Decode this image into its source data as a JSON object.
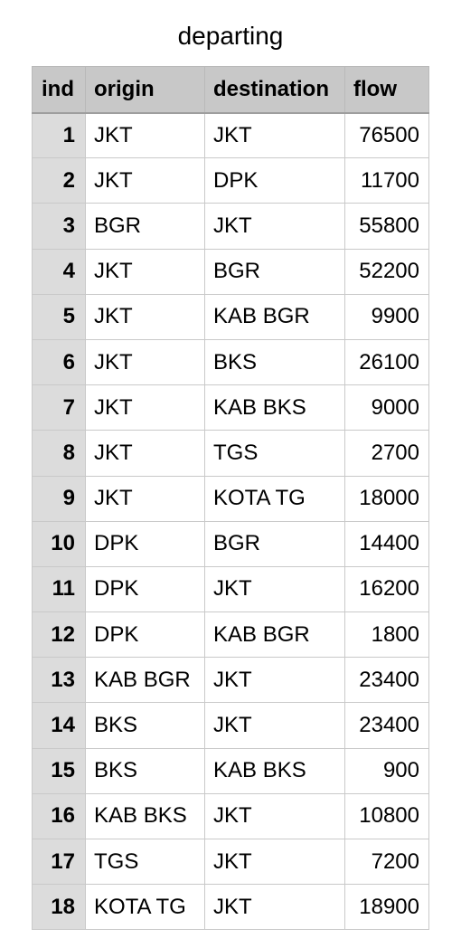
{
  "title": "departing",
  "table": {
    "columns": [
      "ind",
      "origin",
      "destination",
      "flow"
    ],
    "rows": [
      {
        "ind": "1",
        "origin": "JKT",
        "destination": "JKT",
        "flow": "76500"
      },
      {
        "ind": "2",
        "origin": "JKT",
        "destination": "DPK",
        "flow": "11700"
      },
      {
        "ind": "3",
        "origin": "BGR",
        "destination": "JKT",
        "flow": "55800"
      },
      {
        "ind": "4",
        "origin": "JKT",
        "destination": "BGR",
        "flow": "52200"
      },
      {
        "ind": "5",
        "origin": "JKT",
        "destination": "KAB BGR",
        "flow": "9900"
      },
      {
        "ind": "6",
        "origin": "JKT",
        "destination": "BKS",
        "flow": "26100"
      },
      {
        "ind": "7",
        "origin": "JKT",
        "destination": "KAB BKS",
        "flow": "9000"
      },
      {
        "ind": "8",
        "origin": "JKT",
        "destination": "TGS",
        "flow": "2700"
      },
      {
        "ind": "9",
        "origin": "JKT",
        "destination": "KOTA TG",
        "flow": "18000"
      },
      {
        "ind": "10",
        "origin": "DPK",
        "destination": "BGR",
        "flow": "14400"
      },
      {
        "ind": "11",
        "origin": "DPK",
        "destination": "JKT",
        "flow": "16200"
      },
      {
        "ind": "12",
        "origin": "DPK",
        "destination": "KAB BGR",
        "flow": "1800"
      },
      {
        "ind": "13",
        "origin": "KAB BGR",
        "destination": "JKT",
        "flow": "23400"
      },
      {
        "ind": "14",
        "origin": "BKS",
        "destination": "JKT",
        "flow": "23400"
      },
      {
        "ind": "15",
        "origin": "BKS",
        "destination": "KAB BKS",
        "flow": "900"
      },
      {
        "ind": "16",
        "origin": "KAB BKS",
        "destination": "JKT",
        "flow": "10800"
      },
      {
        "ind": "17",
        "origin": "TGS",
        "destination": "JKT",
        "flow": "7200"
      },
      {
        "ind": "18",
        "origin": "KOTA TG",
        "destination": "JKT",
        "flow": "18900"
      }
    ]
  }
}
